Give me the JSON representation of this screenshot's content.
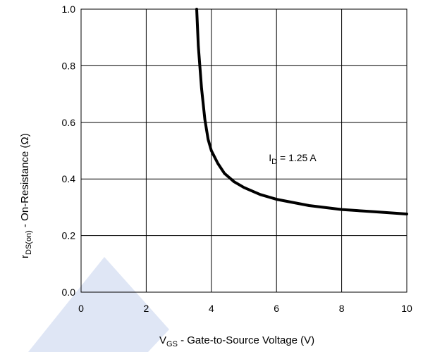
{
  "chart_data": {
    "type": "line",
    "title": "",
    "xlabel": {
      "main": "V",
      "sub": "GS",
      "rest": " - Gate-to-Source Voltage (V)"
    },
    "ylabel": {
      "main": "r",
      "sub": "DS(on)",
      "rest": "  -  On-Resistance (Ω)"
    },
    "xlim": [
      0,
      10
    ],
    "ylim": [
      0,
      1.0
    ],
    "x_ticks": [
      0,
      2,
      4,
      6,
      8,
      10
    ],
    "x_tick_labels": [
      "0",
      "2",
      "4",
      "6",
      "8",
      "10"
    ],
    "y_ticks": [
      0,
      0.2,
      0.4,
      0.6,
      0.8,
      1.0
    ],
    "y_tick_labels": [
      "0.0",
      "0.2",
      "0.4",
      "0.6",
      "0.8",
      "1.0"
    ],
    "grid": true,
    "series": [
      {
        "x": [
          3.55,
          3.6,
          3.7,
          3.8,
          3.9,
          4.0,
          4.2,
          4.4,
          4.7,
          5.0,
          5.5,
          6.0,
          7.0,
          8.0,
          9.0,
          10.0
        ],
        "y": [
          1.0,
          0.87,
          0.72,
          0.61,
          0.54,
          0.5,
          0.455,
          0.42,
          0.39,
          0.37,
          0.345,
          0.328,
          0.306,
          0.292,
          0.284,
          0.276
        ]
      }
    ],
    "annotations": [
      {
        "main": "I",
        "sub": "D",
        "rest": " = 1.25  A",
        "x": 5.85,
        "y": 0.46
      }
    ],
    "watermark_color": "#dfe6f5",
    "line_color": "#000000",
    "grid_color": "#000000"
  }
}
